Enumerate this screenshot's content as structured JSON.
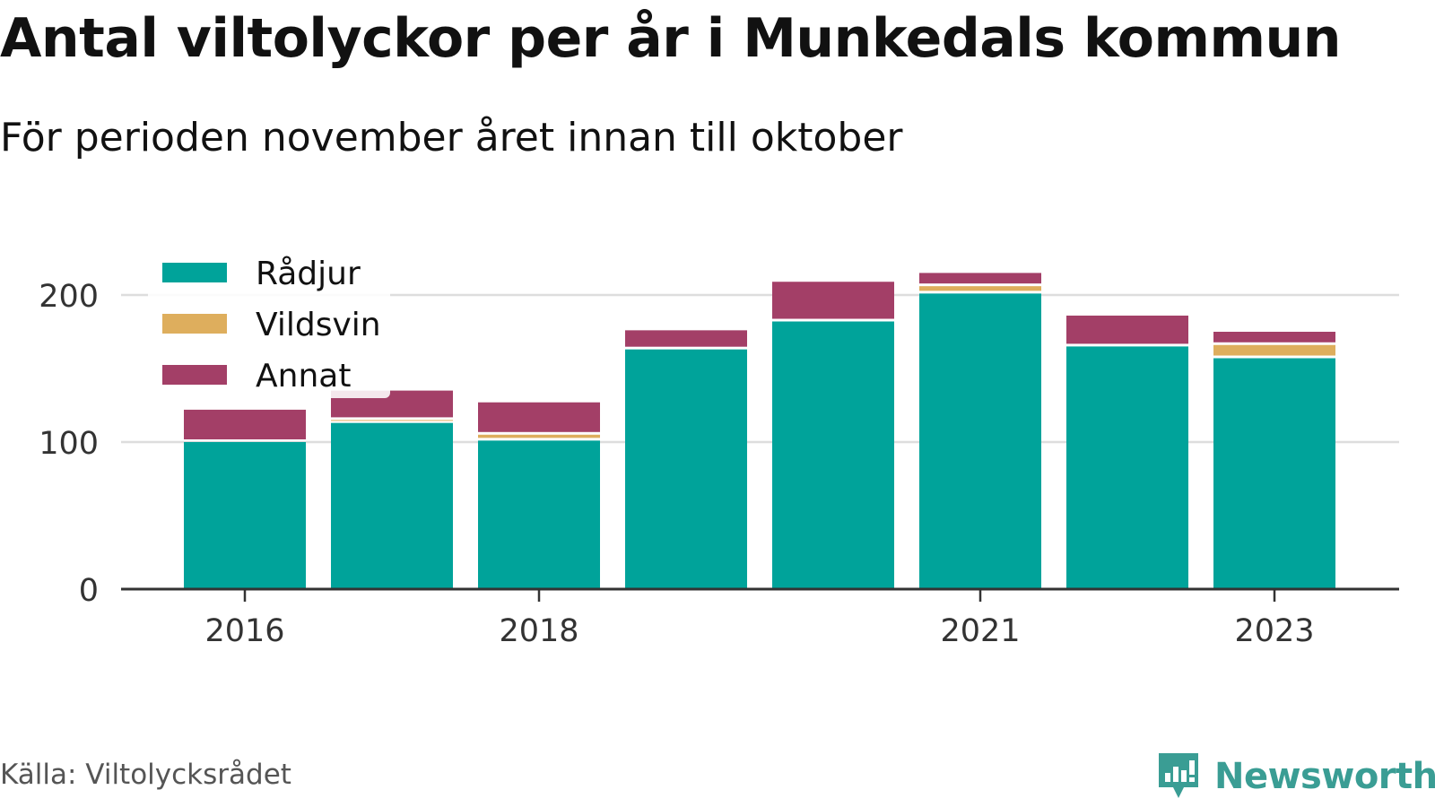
{
  "title": "Antal viltolyckor per år i Munkedals kommun",
  "subtitle": "För perioden november året innan till oktober",
  "source": "Källa: Viltolycksrådet",
  "brand": "Newsworthy",
  "colors": {
    "radjur": "#00a39a",
    "vildsvin": "#deae5d",
    "annat": "#a33f67",
    "axis": "#333333",
    "grid": "#dddddd",
    "brand": "#3a9d94"
  },
  "chart_data": {
    "type": "bar",
    "stacked": true,
    "categories": [
      "2016",
      "2017",
      "2018",
      "2019",
      "2020",
      "2021",
      "2022",
      "2023"
    ],
    "x_tick_labels": [
      "2016",
      "",
      "2018",
      "",
      "",
      "2021",
      "",
      "2023"
    ],
    "series": [
      {
        "name": "Rådjur",
        "color": "#00a39a",
        "values": [
          100,
          113,
          101,
          163,
          182,
          201,
          165,
          157
        ]
      },
      {
        "name": "Vildsvin",
        "color": "#deae5d",
        "values": [
          0,
          2,
          4,
          0,
          0,
          5,
          0,
          9
        ]
      },
      {
        "name": "Annat",
        "color": "#a33f67",
        "values": [
          22,
          20,
          22,
          13,
          27,
          9,
          21,
          9
        ]
      }
    ],
    "y_ticks": [
      0,
      100,
      200
    ],
    "ylim": [
      0,
      230
    ],
    "grid": true,
    "legend": "top-left"
  }
}
